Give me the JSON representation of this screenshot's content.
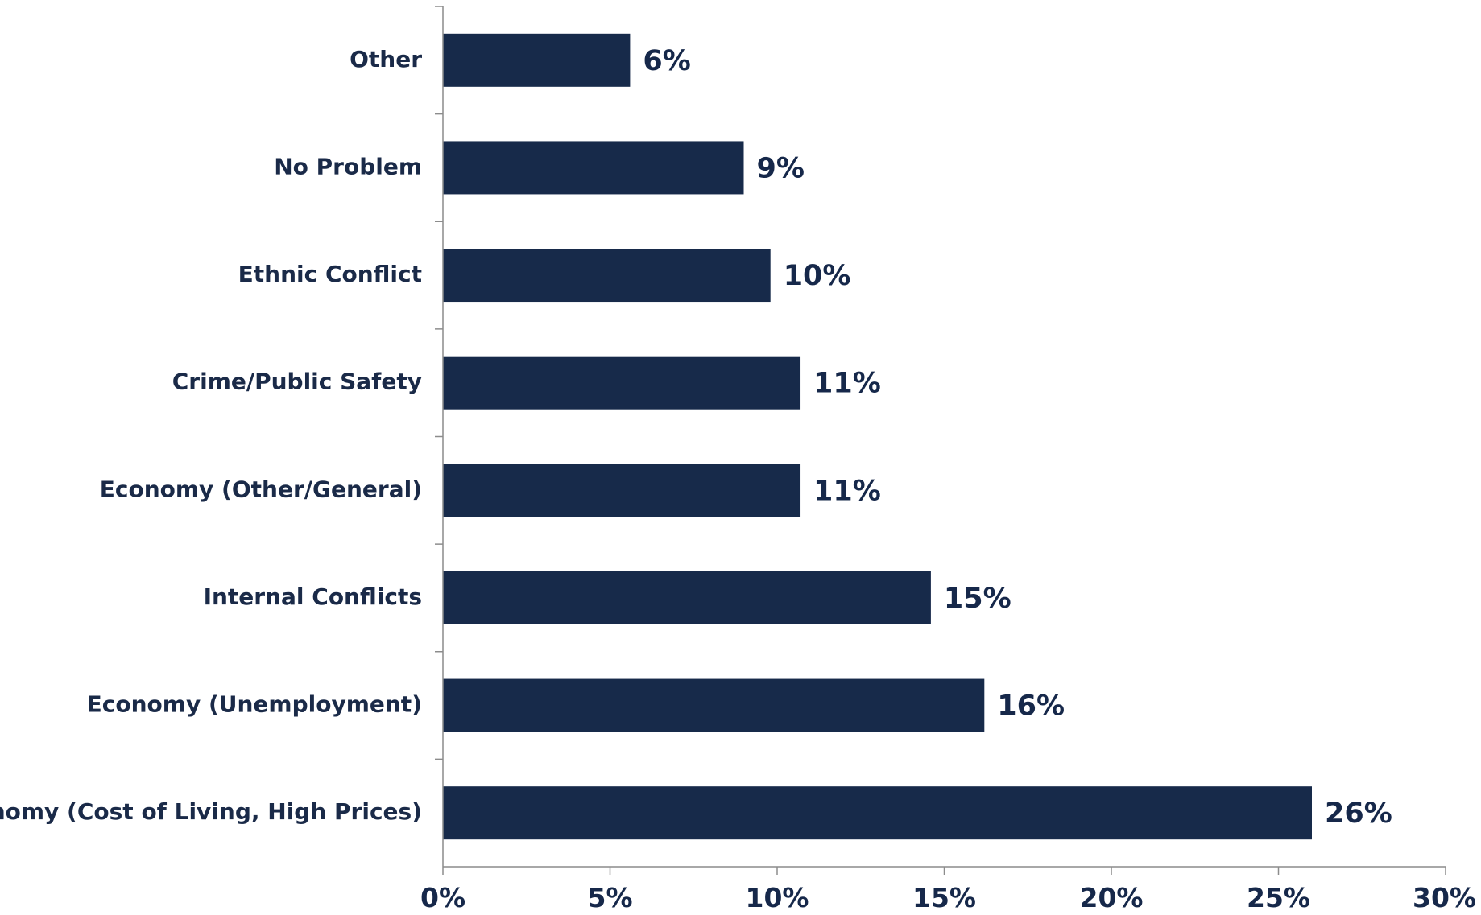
{
  "chart_data": {
    "type": "bar",
    "orientation": "horizontal",
    "categories": [
      "Other",
      "No Problem",
      "Ethnic Conflict",
      "Crime/Public Safety",
      "Economy (Other/General)",
      "Internal Conflicts",
      "Economy (Unemployment)",
      "Economy (Cost of Living, High Prices)"
    ],
    "values": [
      5.6,
      9.0,
      9.8,
      10.7,
      10.7,
      14.6,
      16.2,
      26.0
    ],
    "data_labels": [
      "6%",
      "9%",
      "10%",
      "11%",
      "11%",
      "15%",
      "16%",
      "26%"
    ],
    "x_ticks": [
      "0%",
      "5%",
      "10%",
      "15%",
      "20%",
      "25%",
      "30%"
    ],
    "xlim": [
      0,
      30
    ],
    "title": "",
    "xlabel": "",
    "ylabel": "",
    "grid": false,
    "legend": "none",
    "bar_color": "#172a4a",
    "label_color": "#16284a"
  }
}
